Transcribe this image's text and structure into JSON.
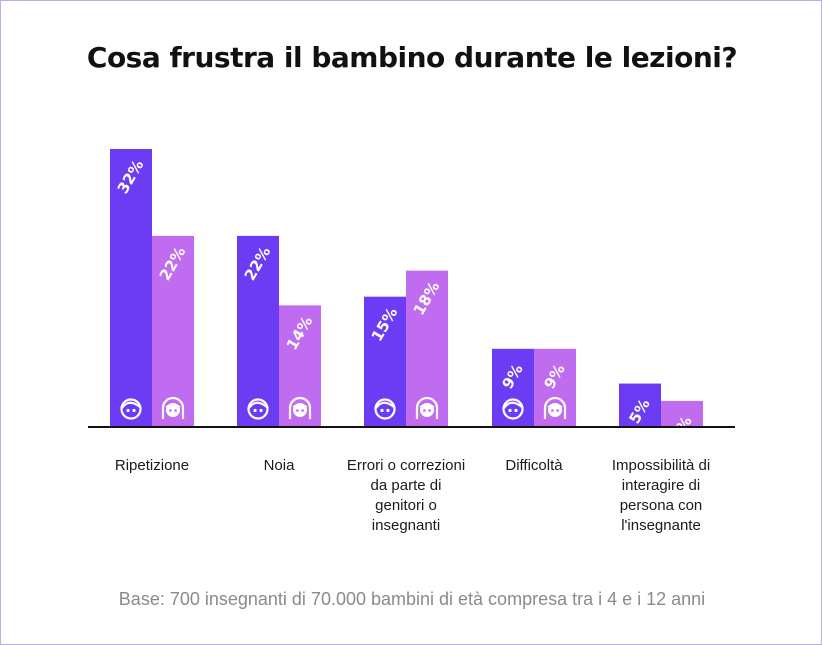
{
  "chart_data": {
    "type": "bar",
    "title": "Cosa frustra il bambino durante le lezioni?",
    "categories": [
      [
        "Ripetizione"
      ],
      [
        "Noia"
      ],
      [
        "Errori o correzioni",
        "da parte di",
        "genitori o",
        "insegnanti"
      ],
      [
        "Difficoltà"
      ],
      [
        "Impossibilità di",
        "interagire di",
        "persona con",
        "l'insegnante"
      ]
    ],
    "series": [
      {
        "values": [
          32,
          22,
          15,
          9,
          5
        ],
        "labels": [
          "32%",
          "22%",
          "15%",
          "9%",
          "5%"
        ],
        "color": "#6c3cf5",
        "icon": "boy-face-icon"
      },
      {
        "values": [
          22,
          14,
          18,
          9,
          3
        ],
        "labels": [
          "22%",
          "14%",
          "18%",
          "9%",
          "3%"
        ],
        "color": "#c06cf0",
        "icon": "girl-face-icon"
      }
    ],
    "ylim": [
      0,
      32
    ],
    "grid": false,
    "legend": "none",
    "footnote": "Base: 700 insegnanti di 70.000 bambini di età compresa tra i 4 e i 12 anni"
  }
}
